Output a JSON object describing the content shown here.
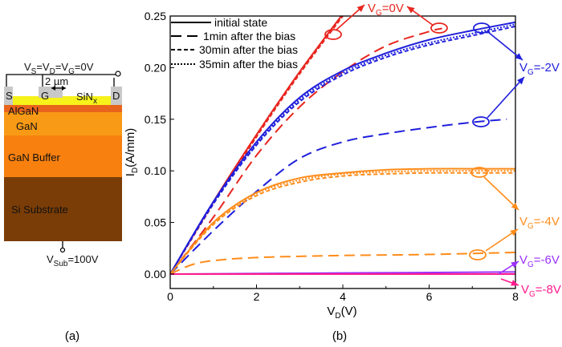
{
  "panel_a": {
    "caption": "(a)",
    "bias_top": [
      {
        "t": "V"
      },
      {
        "t": "S",
        "sub": true
      },
      {
        "t": "=V"
      },
      {
        "t": "D",
        "sub": true
      },
      {
        "t": "=V"
      },
      {
        "t": "G",
        "sub": true
      },
      {
        "t": "=0V"
      }
    ],
    "gate_length": "2 µm",
    "contacts": {
      "source": "S",
      "gate": "G",
      "drain": "D"
    },
    "passivation": [
      {
        "t": "SiN"
      },
      {
        "t": "x",
        "sub": true
      }
    ],
    "layers": [
      {
        "name": "AlGaN",
        "color": "#e8641c"
      },
      {
        "name": "GaN",
        "color": "#f99a16"
      },
      {
        "name": "GaN Buffer",
        "color": "#f7800f"
      },
      {
        "name": "Si Substrate",
        "color": "#7a3d07"
      }
    ],
    "sinx_color": "#f7f21a",
    "contact_color": "#c8c8c8",
    "bias_sub": [
      {
        "t": "V"
      },
      {
        "t": "Sub",
        "sub": true
      },
      {
        "t": "=100V"
      }
    ]
  },
  "chart_data": {
    "type": "line",
    "caption": "(b)",
    "xlabel": [
      {
        "t": "V"
      },
      {
        "t": "D",
        "sub": true
      },
      {
        "t": "(V)"
      }
    ],
    "ylabel": [
      {
        "t": "I"
      },
      {
        "t": "D",
        "sub": true
      },
      {
        "t": "(A/mm)"
      }
    ],
    "xlim": [
      0,
      8
    ],
    "ylim": [
      -0.014,
      0.25
    ],
    "xticks": [
      "0",
      "2",
      "4",
      "6",
      "8"
    ],
    "yticks": [
      "0.00",
      "0.05",
      "0.10",
      "0.15",
      "0.20",
      "0.25"
    ],
    "grid": false,
    "legend_placement": "top-left",
    "legend": [
      {
        "label": "initial state",
        "style": "solid"
      },
      {
        "label": "1min after the bias",
        "style": "long-dash"
      },
      {
        "label": "30min after the bias",
        "style": "short-dash"
      },
      {
        "label": "35min after the bias",
        "style": "dotted"
      }
    ],
    "gate_labels": [
      {
        "id": "vg0",
        "parts": [
          {
            "t": "V"
          },
          {
            "t": "G",
            "sub": true
          },
          {
            "t": "=0V"
          }
        ],
        "color": "#e8261f"
      },
      {
        "id": "vg2",
        "parts": [
          {
            "t": "V"
          },
          {
            "t": "G",
            "sub": true
          },
          {
            "t": "=-2V"
          }
        ],
        "color": "#1f1fdc"
      },
      {
        "id": "vg4",
        "parts": [
          {
            "t": "V"
          },
          {
            "t": "G",
            "sub": true
          },
          {
            "t": "=-4V"
          }
        ],
        "color": "#ff8c1a"
      },
      {
        "id": "vg6",
        "parts": [
          {
            "t": "V"
          },
          {
            "t": "G",
            "sub": true
          },
          {
            "t": "=-6V"
          }
        ],
        "color": "#9b30ff"
      },
      {
        "id": "vg8",
        "parts": [
          {
            "t": "V"
          },
          {
            "t": "G",
            "sub": true
          },
          {
            "t": "=-8V"
          }
        ],
        "color": "#ff1a8c"
      }
    ],
    "series": [
      {
        "gate": "VG=0V",
        "condition": "initial state",
        "style": "solid",
        "color": "#e8261f",
        "x": [
          0,
          1,
          2,
          3,
          4
        ],
        "y": [
          0,
          0.07,
          0.135,
          0.196,
          0.252
        ]
      },
      {
        "gate": "VG=0V",
        "condition": "30min after the bias",
        "style": "short-dash",
        "color": "#e8261f",
        "x": [
          0,
          1,
          2,
          3,
          4
        ],
        "y": [
          0,
          0.068,
          0.133,
          0.194,
          0.25
        ]
      },
      {
        "gate": "VG=0V",
        "condition": "35min after the bias",
        "style": "dotted",
        "color": "#e8261f",
        "x": [
          0,
          1,
          2,
          3,
          4
        ],
        "y": [
          0,
          0.069,
          0.134,
          0.195,
          0.251
        ]
      },
      {
        "gate": "VG=0V",
        "condition": "1min after the bias",
        "style": "long-dash",
        "color": "#e8261f",
        "x": [
          0,
          1,
          2,
          3,
          4,
          5,
          6,
          6.3
        ],
        "y": [
          0,
          0.055,
          0.115,
          0.162,
          0.196,
          0.221,
          0.235,
          0.238
        ]
      },
      {
        "gate": "VG=-2V",
        "condition": "initial state",
        "style": "solid",
        "color": "#1f1fdc",
        "x": [
          0,
          1,
          2,
          3,
          4,
          5,
          6,
          7,
          8
        ],
        "y": [
          0,
          0.07,
          0.128,
          0.171,
          0.197,
          0.214,
          0.227,
          0.236,
          0.244
        ]
      },
      {
        "gate": "VG=-2V",
        "condition": "30min after the bias",
        "style": "short-dash",
        "color": "#1f1fdc",
        "x": [
          0,
          1,
          2,
          3,
          4,
          5,
          6,
          7,
          8
        ],
        "y": [
          0,
          0.068,
          0.125,
          0.167,
          0.193,
          0.21,
          0.222,
          0.231,
          0.24
        ]
      },
      {
        "gate": "VG=-2V",
        "condition": "35min after the bias",
        "style": "dotted",
        "color": "#1f1fdc",
        "x": [
          0,
          1,
          2,
          3,
          4,
          5,
          6,
          7,
          8
        ],
        "y": [
          0,
          0.069,
          0.126,
          0.169,
          0.195,
          0.212,
          0.224,
          0.233,
          0.242
        ]
      },
      {
        "gate": "VG=-2V",
        "condition": "1min after the bias",
        "style": "long-dash",
        "color": "#1f1fdc",
        "x": [
          0,
          1,
          2,
          3,
          4,
          5,
          6,
          7,
          7.8
        ],
        "y": [
          0,
          0.042,
          0.08,
          0.112,
          0.128,
          0.136,
          0.142,
          0.147,
          0.15
        ]
      },
      {
        "gate": "VG=-4V",
        "condition": "initial state",
        "style": "solid",
        "color": "#ff8c1a",
        "x": [
          0,
          1,
          2,
          3,
          4,
          5,
          6,
          7,
          8
        ],
        "y": [
          0,
          0.05,
          0.079,
          0.093,
          0.098,
          0.101,
          0.102,
          0.102,
          0.102
        ]
      },
      {
        "gate": "VG=-4V",
        "condition": "30min after the bias",
        "style": "short-dash",
        "color": "#ff8c1a",
        "x": [
          0,
          1,
          2,
          3,
          4,
          5,
          6,
          7,
          8
        ],
        "y": [
          0,
          0.048,
          0.076,
          0.089,
          0.095,
          0.097,
          0.098,
          0.098,
          0.098
        ]
      },
      {
        "gate": "VG=-4V",
        "condition": "35min after the bias",
        "style": "dotted",
        "color": "#ff8c1a",
        "x": [
          0,
          1,
          2,
          3,
          4,
          5,
          6,
          7,
          8
        ],
        "y": [
          0,
          0.049,
          0.078,
          0.091,
          0.097,
          0.099,
          0.1,
          0.1,
          0.1
        ]
      },
      {
        "gate": "VG=-4V",
        "condition": "1min after the bias",
        "style": "long-dash",
        "color": "#ff8c1a",
        "x": [
          0,
          0.5,
          1,
          2,
          4,
          6,
          8
        ],
        "y": [
          0,
          0.009,
          0.013,
          0.016,
          0.018,
          0.019,
          0.021
        ]
      },
      {
        "gate": "VG=-6V",
        "condition": "initial state",
        "style": "solid",
        "color": "#9b30ff",
        "x": [
          0,
          4,
          8
        ],
        "y": [
          0,
          0.001,
          0.002
        ]
      },
      {
        "gate": "VG=-8V",
        "condition": "initial state",
        "style": "solid",
        "color": "#ff1a8c",
        "x": [
          0,
          4,
          8
        ],
        "y": [
          0,
          0,
          0
        ]
      }
    ]
  }
}
